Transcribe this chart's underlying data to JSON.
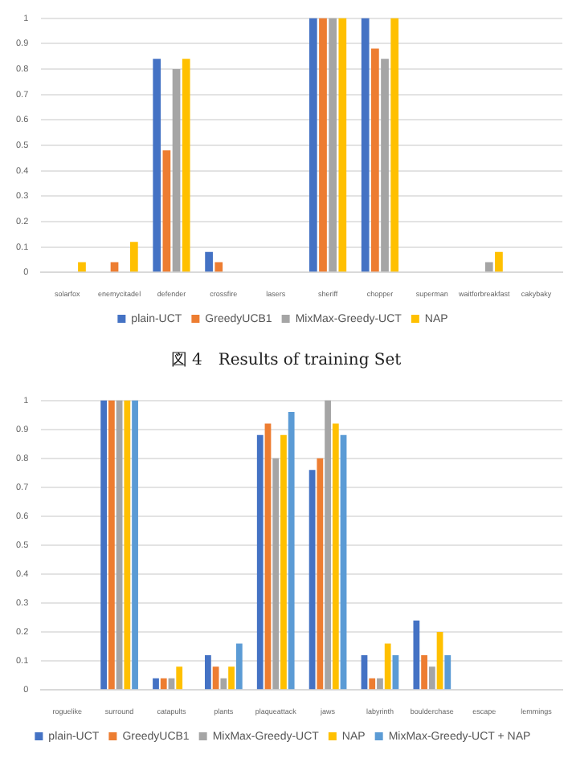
{
  "chart_data": [
    {
      "type": "bar",
      "categories": [
        "solarfox",
        "enemycitadel",
        "defender",
        "crossfire",
        "lasers",
        "sheriff",
        "chopper",
        "superman",
        "waitforbreakfast",
        "cakybaky"
      ],
      "series": [
        {
          "name": "plain-UCT",
          "color": "#4472c4",
          "values": [
            0,
            0,
            0.84,
            0.08,
            0,
            1,
            1,
            0,
            0,
            0
          ]
        },
        {
          "name": "GreedyUCB1",
          "color": "#ed7d31",
          "values": [
            0,
            0.04,
            0.48,
            0.04,
            0,
            1,
            0.88,
            0,
            0,
            0
          ]
        },
        {
          "name": "MixMax-Greedy-UCT",
          "color": "#a5a5a5",
          "values": [
            0,
            0,
            0.8,
            0,
            0,
            1,
            0.84,
            0,
            0.04,
            0
          ]
        },
        {
          "name": "NAP",
          "color": "#ffc000",
          "values": [
            0.04,
            0.12,
            0.84,
            0,
            0,
            1,
            1,
            0,
            0.08,
            0
          ]
        }
      ],
      "ylim": [
        0,
        1
      ],
      "yticks": [
        0,
        0.1,
        0.2,
        0.3,
        0.4,
        0.5,
        0.6,
        0.7,
        0.8,
        0.9,
        1
      ],
      "grid": "y",
      "legend": "bottom",
      "annotations": [
        "図 4　Results of training Set"
      ]
    },
    {
      "type": "bar",
      "categories": [
        "roguelike",
        "surround",
        "catapults",
        "plants",
        "plaqueattack",
        "jaws",
        "labyrinth",
        "boulderchase",
        "escape",
        "lemmings"
      ],
      "series": [
        {
          "name": "plain-UCT",
          "color": "#4472c4",
          "values": [
            0,
            1,
            0.04,
            0.12,
            0.88,
            0.76,
            0.12,
            0.24,
            0,
            0
          ]
        },
        {
          "name": "GreedyUCB1",
          "color": "#ed7d31",
          "values": [
            0,
            1,
            0.04,
            0.08,
            0.92,
            0.8,
            0.04,
            0.12,
            0,
            0
          ]
        },
        {
          "name": "MixMax-Greedy-UCT",
          "color": "#a5a5a5",
          "values": [
            0,
            1,
            0.04,
            0.04,
            0.8,
            1,
            0.04,
            0.08,
            0,
            0
          ]
        },
        {
          "name": "NAP",
          "color": "#ffc000",
          "values": [
            0,
            1,
            0.08,
            0.08,
            0.88,
            0.92,
            0.16,
            0.2,
            0,
            0
          ]
        },
        {
          "name": "MixMax-Greedy-UCT + NAP",
          "color": "#5b9bd5",
          "values": [
            0,
            1,
            0,
            0.16,
            0.96,
            0.88,
            0.12,
            0.12,
            0,
            0
          ]
        }
      ],
      "ylim": [
        0,
        1
      ],
      "yticks": [
        0,
        0.1,
        0.2,
        0.3,
        0.4,
        0.5,
        0.6,
        0.7,
        0.8,
        0.9,
        1
      ],
      "grid": "y",
      "legend": "bottom"
    }
  ]
}
